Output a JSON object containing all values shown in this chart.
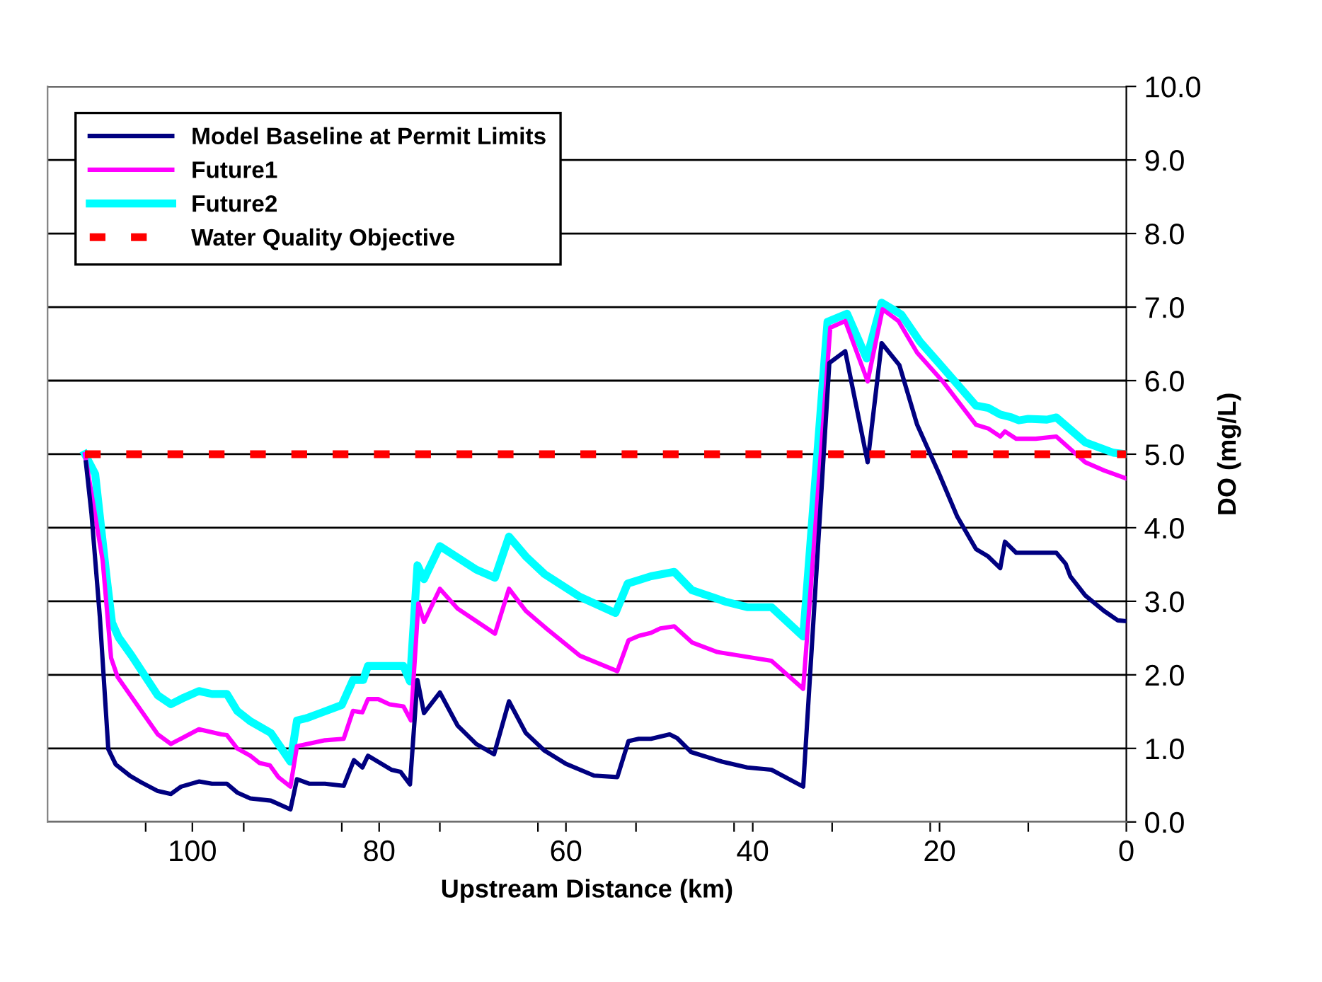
{
  "chart_data": {
    "type": "line",
    "xlabel": "Upstream Distance (km)",
    "ylabel": "DO (mg/L)",
    "xlim": [
      115.5,
      0
    ],
    "xticks": [
      100,
      80,
      60,
      40,
      20,
      0,
      {
        "value": 105,
        "label": null
      },
      {
        "value": 94.5,
        "label": null
      },
      {
        "value": 84,
        "label": null
      },
      {
        "value": 73.5,
        "label": null
      },
      {
        "value": 63,
        "label": null
      },
      {
        "value": 52.5,
        "label": null
      },
      {
        "value": 42,
        "label": null
      },
      {
        "value": 31.5,
        "label": null
      },
      {
        "value": 21,
        "label": null
      },
      {
        "value": 10.5,
        "label": null
      }
    ],
    "ylim": [
      0,
      10
    ],
    "yticks": [
      {
        "value": 0,
        "label": "0.0"
      },
      {
        "value": 1,
        "label": "1.0"
      },
      {
        "value": 2,
        "label": "2.0"
      },
      {
        "value": 3,
        "label": "3.0"
      },
      {
        "value": 4,
        "label": "4.0"
      },
      {
        "value": 5,
        "label": "5.0"
      },
      {
        "value": 6,
        "label": "6.0"
      },
      {
        "value": 7,
        "label": "7.0"
      },
      {
        "value": 8,
        "label": "8.0"
      },
      {
        "value": 9,
        "label": "9.0"
      },
      {
        "value": 10,
        "label": "10.0"
      }
    ],
    "grid": "y",
    "legend": "top left",
    "marker": "none",
    "series": [
      {
        "name": "Model Baseline at Permit Limits",
        "color": "#000080",
        "line_style": "solid",
        "x": [
          111.4,
          110.8,
          109.9,
          109.0,
          108.2,
          106.7,
          105.5,
          103.7,
          102.3,
          101.2,
          99.3,
          97.9,
          96.3,
          95.2,
          93.8,
          91.6,
          89.5,
          88.8,
          87.5,
          85.8,
          83.8,
          82.7,
          81.8,
          81.2,
          78.7,
          77.7,
          76.7,
          75.9,
          75.2,
          73.5,
          71.6,
          69.6,
          67.7,
          66.1,
          64.3,
          62.3,
          60.0,
          57.0,
          54.5,
          53.3,
          52.2,
          50.9,
          48.9,
          48.1,
          46.6,
          43.3,
          40.6,
          38.0,
          34.6,
          31.8,
          30.1,
          27.7,
          26.2,
          24.3,
          22.4,
          20.1,
          18.1,
          16.1,
          14.8,
          13.5,
          13.0,
          11.8,
          7.5,
          6.5,
          6.0,
          4.4,
          2.4,
          0.9,
          0
        ],
        "values": [
          4.89,
          4.19,
          2.78,
          0.99,
          0.78,
          0.63,
          0.54,
          0.42,
          0.38,
          0.48,
          0.55,
          0.52,
          0.52,
          0.4,
          0.32,
          0.29,
          0.17,
          0.58,
          0.52,
          0.52,
          0.49,
          0.84,
          0.74,
          0.9,
          0.71,
          0.68,
          0.51,
          1.93,
          1.48,
          1.76,
          1.31,
          1.06,
          0.92,
          1.64,
          1.21,
          0.97,
          0.79,
          0.63,
          0.61,
          1.1,
          1.13,
          1.13,
          1.19,
          1.14,
          0.95,
          0.82,
          0.74,
          0.71,
          0.48,
          6.24,
          6.4,
          4.89,
          6.51,
          6.21,
          5.4,
          4.75,
          4.15,
          3.71,
          3.61,
          3.45,
          3.81,
          3.66,
          3.66,
          3.51,
          3.34,
          3.08,
          2.87,
          2.74,
          2.73
        ]
      },
      {
        "name": "Future1",
        "color": "#ff00ff",
        "line_style": "solid",
        "x": [
          111.5,
          109.6,
          108.7,
          108.0,
          103.7,
          102.3,
          99.3,
          96.9,
          96.3,
          95.2,
          93.8,
          92.8,
          91.7,
          90.8,
          89.5,
          88.8,
          85.8,
          83.8,
          82.8,
          81.8,
          81.2,
          80.1,
          78.9,
          77.4,
          76.6,
          75.8,
          75.2,
          73.5,
          71.6,
          67.6,
          66.1,
          64.3,
          62.0,
          58.5,
          54.5,
          53.3,
          52.2,
          50.9,
          49.9,
          48.4,
          46.5,
          43.8,
          38.0,
          34.6,
          31.7,
          30.1,
          27.7,
          26.1,
          24.4,
          22.4,
          19.6,
          16.1,
          14.8,
          13.5,
          13.0,
          11.8,
          9.7,
          7.5,
          4.4,
          2.4,
          0
        ],
        "values": [
          5.0,
          3.55,
          2.23,
          1.97,
          1.19,
          1.06,
          1.26,
          1.19,
          1.18,
          1.0,
          0.9,
          0.8,
          0.77,
          0.61,
          0.48,
          1.03,
          1.11,
          1.13,
          1.51,
          1.49,
          1.67,
          1.67,
          1.6,
          1.57,
          1.38,
          2.97,
          2.72,
          3.17,
          2.9,
          2.56,
          3.17,
          2.87,
          2.62,
          2.26,
          2.05,
          2.47,
          2.53,
          2.57,
          2.63,
          2.66,
          2.44,
          2.31,
          2.19,
          1.81,
          6.72,
          6.81,
          5.99,
          6.97,
          6.81,
          6.38,
          5.98,
          5.4,
          5.35,
          5.24,
          5.31,
          5.21,
          5.21,
          5.24,
          4.89,
          4.78,
          4.67
        ]
      },
      {
        "name": "Future2",
        "color": "#00ffff",
        "line_style": "solid",
        "x": [
          111.5,
          110.4,
          109.2,
          108.6,
          107.9,
          106.5,
          103.7,
          102.3,
          100.9,
          99.3,
          97.9,
          96.3,
          95.2,
          93.8,
          91.6,
          89.5,
          88.8,
          87.8,
          86.3,
          84.0,
          82.8,
          81.7,
          81.2,
          77.4,
          76.7,
          75.9,
          75.2,
          73.5,
          69.6,
          67.6,
          66.1,
          64.3,
          62.3,
          58.5,
          54.7,
          53.4,
          50.9,
          48.4,
          46.5,
          42.8,
          40.6,
          38.0,
          34.6,
          32.0,
          29.9,
          27.8,
          26.2,
          24.1,
          22.1,
          19.6,
          16.1,
          14.8,
          13.5,
          12.3,
          11.5,
          10.5,
          8.5,
          7.5,
          4.4,
          1.4,
          0
        ],
        "values": [
          5.0,
          4.73,
          3.35,
          2.71,
          2.51,
          2.26,
          1.72,
          1.6,
          1.69,
          1.78,
          1.74,
          1.74,
          1.51,
          1.37,
          1.21,
          0.82,
          1.38,
          1.41,
          1.48,
          1.59,
          1.93,
          1.93,
          2.12,
          2.12,
          1.91,
          3.49,
          3.3,
          3.75,
          3.43,
          3.32,
          3.88,
          3.61,
          3.37,
          3.06,
          2.84,
          3.24,
          3.34,
          3.4,
          3.15,
          2.99,
          2.92,
          2.92,
          2.52,
          6.8,
          6.91,
          6.3,
          7.06,
          6.9,
          6.53,
          6.17,
          5.66,
          5.63,
          5.54,
          5.5,
          5.46,
          5.48,
          5.47,
          5.5,
          5.16,
          5.02,
          5.0
        ]
      },
      {
        "name": "Water Quality Objective",
        "color": "#ff0000",
        "line_style": "dashed",
        "x": [
          111.5,
          0
        ],
        "values": [
          5.0,
          5.0
        ]
      }
    ]
  }
}
